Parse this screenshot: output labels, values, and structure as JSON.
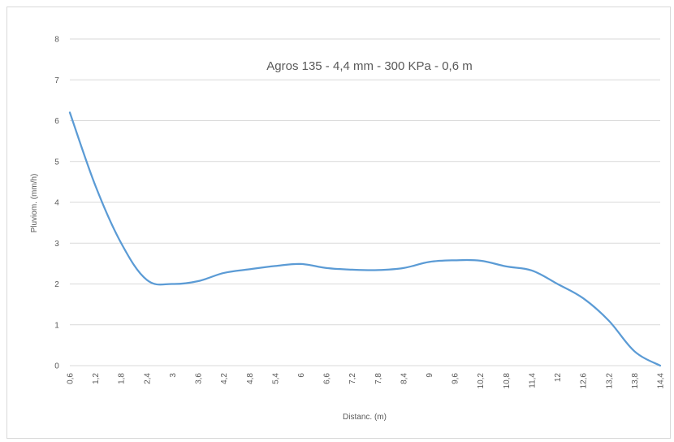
{
  "chart_data": {
    "type": "line",
    "title": "Agros 135 - 4,4 mm - 300 KPa - 0,6 m",
    "xlabel": "Distanc. (m)",
    "ylabel": "Pluviom. (mm/h)",
    "ylim": [
      0,
      8
    ],
    "yticks": [
      "0",
      "1",
      "2",
      "3",
      "4",
      "5",
      "6",
      "7",
      "8"
    ],
    "categories": [
      "0,6",
      "1,2",
      "1,8",
      "2,4",
      "3",
      "3,6",
      "4,2",
      "4,8",
      "5,4",
      "6",
      "6,6",
      "7,2",
      "7,8",
      "8,4",
      "9",
      "9,6",
      "10,2",
      "10,8",
      "11,4",
      "12",
      "12,6",
      "13,2",
      "13,8",
      "14,4"
    ],
    "series": [
      {
        "color": "#5b9bd5",
        "values": [
          6.2,
          4.4,
          3.0,
          2.1,
          2.0,
          2.07,
          2.27,
          2.36,
          2.44,
          2.49,
          2.39,
          2.35,
          2.34,
          2.39,
          2.54,
          2.58,
          2.57,
          2.43,
          2.33,
          2.0,
          1.65,
          1.1,
          0.35,
          0.0
        ]
      }
    ],
    "grid": true,
    "legend": "none"
  }
}
